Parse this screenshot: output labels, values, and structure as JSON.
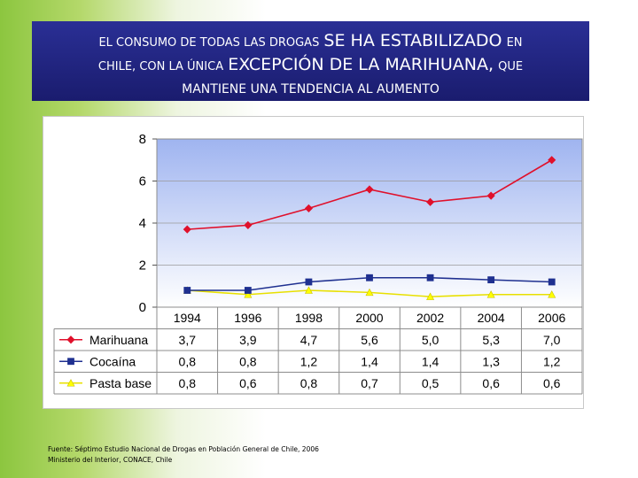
{
  "header": {
    "line1_a": "EL CONSUMO DE TODAS LAS DROGAS",
    "line1_b": "SE HA ESTABILIZADO",
    "line1_c": "EN",
    "line2_a": "CHILE, CON LA ÚNICA",
    "line2_b": "EXCEPCIÓN DE LA MARIHUANA,",
    "line2_c": "QUE",
    "line3": "MANTIENE UNA TENDENCIA AL AUMENTO"
  },
  "colors": {
    "marihuana": "#e0102b",
    "cocaina": "#1f3090",
    "pasta_base": "#ffff00",
    "plot_bg_top": "#9fb4f0",
    "plot_bg_bottom": "#ffffff"
  },
  "chart_data": {
    "type": "line",
    "title": "",
    "xlabel": "",
    "ylabel": "",
    "ylim": [
      0,
      8
    ],
    "yticks": [
      "0",
      "2",
      "4",
      "6",
      "8"
    ],
    "categories": [
      "1994",
      "1996",
      "1998",
      "2000",
      "2002",
      "2004",
      "2006"
    ],
    "series": [
      {
        "name": "Marihuana",
        "values": [
          3.7,
          3.9,
          4.7,
          5.6,
          5.0,
          5.3,
          7.0
        ],
        "labels": [
          "3,7",
          "3,9",
          "4,7",
          "5,6",
          "5,0",
          "5,3",
          "7,0"
        ],
        "marker": "diamond"
      },
      {
        "name": "Cocaína",
        "values": [
          0.8,
          0.8,
          1.2,
          1.4,
          1.4,
          1.3,
          1.2
        ],
        "labels": [
          "0,8",
          "0,8",
          "1,2",
          "1,4",
          "1,4",
          "1,3",
          "1,2"
        ],
        "marker": "square"
      },
      {
        "name": "Pasta base",
        "values": [
          0.8,
          0.6,
          0.8,
          0.7,
          0.5,
          0.6,
          0.6
        ],
        "labels": [
          "0,8",
          "0,6",
          "0,8",
          "0,7",
          "0,5",
          "0,6",
          "0,6"
        ],
        "marker": "triangle"
      }
    ],
    "legend": "data-table below plot"
  },
  "source": {
    "line1": "Fuente: Séptimo Estudio Nacional de Drogas en Población General de Chile, 2006",
    "line2": "Ministerio del Interior, CONACE, Chile"
  }
}
